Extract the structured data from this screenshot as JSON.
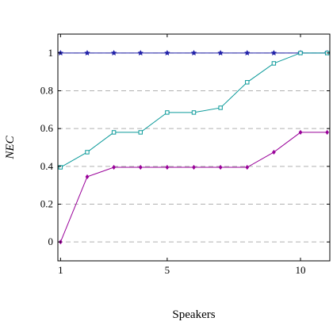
{
  "chart_data": {
    "type": "line",
    "xlabel": "Speakers",
    "ylabel": "NEC",
    "xlim": [
      0.9,
      11.1
    ],
    "ylim": [
      -0.1,
      1.1
    ],
    "x_ticks": [
      1,
      5,
      10
    ],
    "y_ticks": [
      0,
      0.2,
      0.4,
      0.6,
      0.8,
      1
    ],
    "y_tick_labels": [
      "0",
      "0.2",
      "0.4",
      "0.6",
      "0.8",
      "1"
    ],
    "x_tick_labels": [
      "1",
      "5",
      "10"
    ],
    "grid": "horizontal dashed",
    "x": [
      1,
      2,
      3,
      4,
      5,
      6,
      7,
      8,
      9,
      10,
      11
    ],
    "series": [
      {
        "values": [
          1,
          1,
          1,
          1,
          1,
          1,
          1,
          1,
          1,
          1,
          1
        ],
        "color": "#1f1fa8",
        "marker": "star"
      },
      {
        "values": [
          0.395,
          0.475,
          0.58,
          0.58,
          0.685,
          0.685,
          0.71,
          0.845,
          0.945,
          1.0,
          1.0
        ],
        "color": "#0b9a9a",
        "marker": "square"
      },
      {
        "values": [
          0.0,
          0.345,
          0.395,
          0.395,
          0.395,
          0.395,
          0.395,
          0.395,
          0.475,
          0.58,
          0.58
        ],
        "color": "#990099",
        "marker": "diamond"
      }
    ]
  }
}
